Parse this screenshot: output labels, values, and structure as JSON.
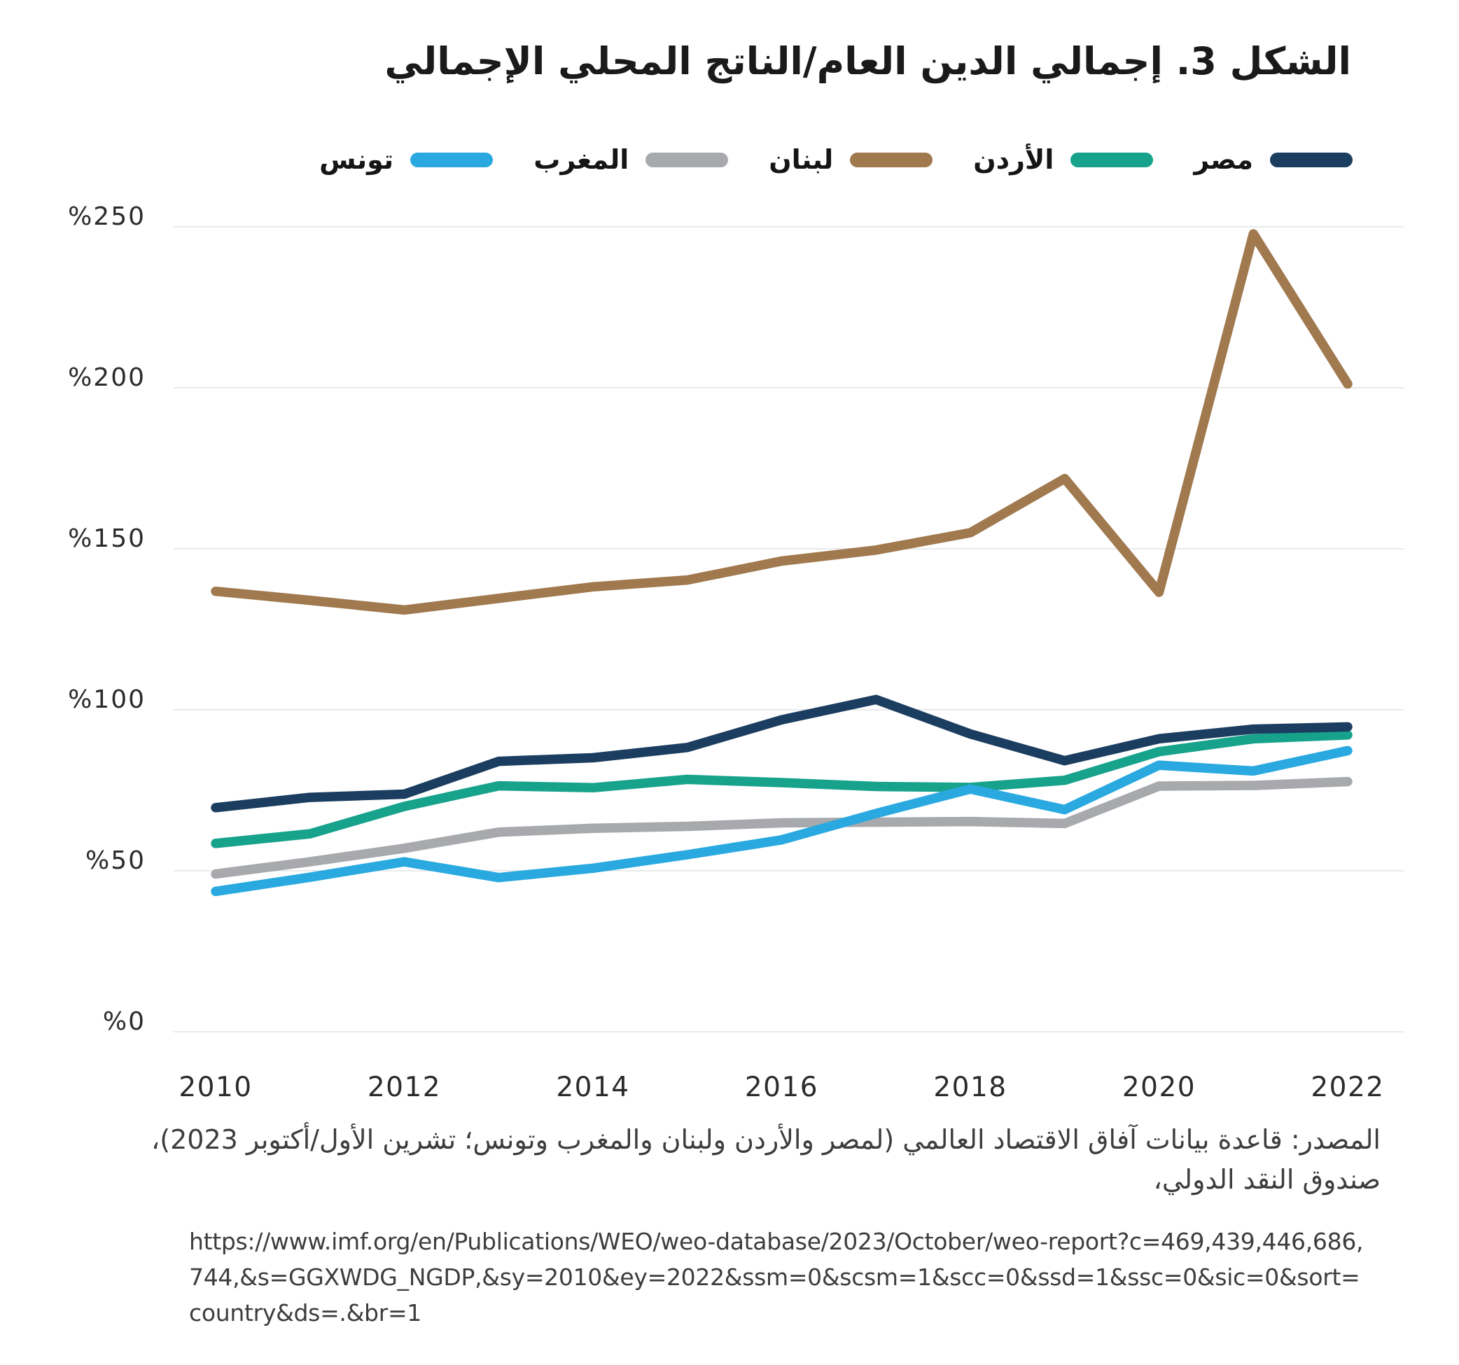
{
  "figure": {
    "title": "الشكل 3. إجمالي الدين العام/الناتج المحلي الإجمالي",
    "source_line1": "المصدر: قاعدة بيانات آفاق الاقتصاد العالمي (لمصر والأردن ولبنان والمغرب وتونس؛ تشرين الأول/أكتوبر 2023)،",
    "source_line2": "صندوق النقد الدولي،",
    "source_url_line1": "https://www.imf.org/en/Publications/WEO/weo-database/2023/October/weo-report?c=469,439,446,686,",
    "source_url_line2": "744,&s=GGXWDG_NGDP,&sy=2010&ey=2022&ssm=0&scsm=1&scc=0&ssd=1&ssc=0&sic=0&sort=",
    "source_url_line3": "country&ds=.&br=1"
  },
  "chart_data": {
    "type": "line",
    "x": [
      2010,
      2011,
      2012,
      2013,
      2014,
      2015,
      2016,
      2017,
      2018,
      2019,
      2020,
      2021,
      2022
    ],
    "xticks": [
      2010,
      2012,
      2014,
      2016,
      2018,
      2020,
      2022
    ],
    "yticks": [
      0,
      50,
      100,
      150,
      200,
      250
    ],
    "ytick_labels": [
      "%0",
      "%50",
      "%100",
      "%150",
      "%200",
      "%250"
    ],
    "ylim": [
      0,
      260
    ],
    "grid": true,
    "legend_position": "top",
    "axis_text_color": "#2b2b2b",
    "gridline_color": "#e9eaeb",
    "series": [
      {
        "id": "egypt",
        "name": "مصر",
        "color": "#1B3D60",
        "values": [
          69.6,
          72.8,
          73.8,
          84.0,
          85.1,
          88.3,
          96.9,
          103.2,
          92.5,
          84.2,
          91.0,
          94.0,
          94.7
        ]
      },
      {
        "id": "jordan",
        "name": "الأردن",
        "color": "#17A28C",
        "values": [
          58.5,
          61.5,
          70.0,
          76.4,
          75.8,
          78.4,
          77.4,
          76.2,
          75.9,
          78.1,
          87.0,
          91.0,
          92.2
        ]
      },
      {
        "id": "lebanon",
        "name": "لبنان",
        "color": "#A0794F",
        "values": [
          136.8,
          134.0,
          131.0,
          134.6,
          138.2,
          140.3,
          146.2,
          149.6,
          155.0,
          171.8,
          136.5,
          247.8,
          201.2
        ]
      },
      {
        "id": "morocco",
        "name": "المغرب",
        "color": "#A7A9AC",
        "values": [
          49.0,
          52.8,
          57.0,
          62.0,
          63.2,
          63.8,
          64.9,
          65.1,
          65.3,
          64.7,
          76.3,
          76.5,
          77.7
        ]
      },
      {
        "id": "tunisia",
        "name": "تونس",
        "color": "#29A9E0",
        "values": [
          43.6,
          48.0,
          52.8,
          47.9,
          50.8,
          55.0,
          59.6,
          67.8,
          75.4,
          69.0,
          82.8,
          81.0,
          87.3
        ]
      }
    ]
  }
}
